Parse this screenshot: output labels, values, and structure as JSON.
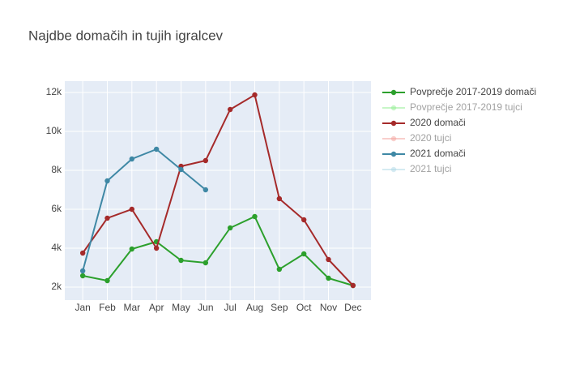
{
  "chart_data": {
    "type": "line",
    "title": "Najdbe domačih in tujih igralcev",
    "categories": [
      "Jan",
      "Feb",
      "Mar",
      "Apr",
      "May",
      "Jun",
      "Jul",
      "Aug",
      "Sep",
      "Oct",
      "Nov",
      "Dec"
    ],
    "series": [
      {
        "name": "Povprečje 2017-2019 domači",
        "color": "#2ca02c",
        "visible": true,
        "values": [
          2583,
          2333,
          3958,
          4333,
          3375,
          3250,
          5042,
          5625,
          2917,
          3708,
          2458,
          2083
        ]
      },
      {
        "name": "Povprečje 2017-2019 tujci",
        "color": "#90ee90",
        "visible": false,
        "values": [
          null,
          null,
          null,
          null,
          null,
          null,
          null,
          null,
          null,
          null,
          null,
          null
        ]
      },
      {
        "name": "2020 domači",
        "color": "#a52a2a",
        "visible": true,
        "values": [
          3750,
          5542,
          6000,
          4000,
          8208,
          8500,
          11125,
          11875,
          6542,
          5458,
          3417,
          2083
        ]
      },
      {
        "name": "2020 tujci",
        "color": "#f4a09a",
        "visible": false,
        "values": [
          null,
          null,
          null,
          null,
          null,
          null,
          null,
          null,
          null,
          null,
          null,
          null
        ]
      },
      {
        "name": "2021 domači",
        "color": "#3f88a5",
        "visible": true,
        "values": [
          2833,
          7458,
          8583,
          9083,
          8042,
          7000,
          null,
          null,
          null,
          null,
          null,
          null
        ]
      },
      {
        "name": "2021 tujci",
        "color": "#add8e6",
        "visible": false,
        "values": [
          null,
          null,
          null,
          null,
          null,
          null,
          null,
          null,
          null,
          null,
          null,
          null
        ]
      }
    ],
    "ylim": [
      1333,
      12583
    ],
    "yticks": [
      {
        "value": 2000,
        "label": "2k"
      },
      {
        "value": 4000,
        "label": "4k"
      },
      {
        "value": 6000,
        "label": "6k"
      },
      {
        "value": 8000,
        "label": "8k"
      },
      {
        "value": 10000,
        "label": "10k"
      },
      {
        "value": 12000,
        "label": "12k"
      }
    ],
    "grid": true
  }
}
